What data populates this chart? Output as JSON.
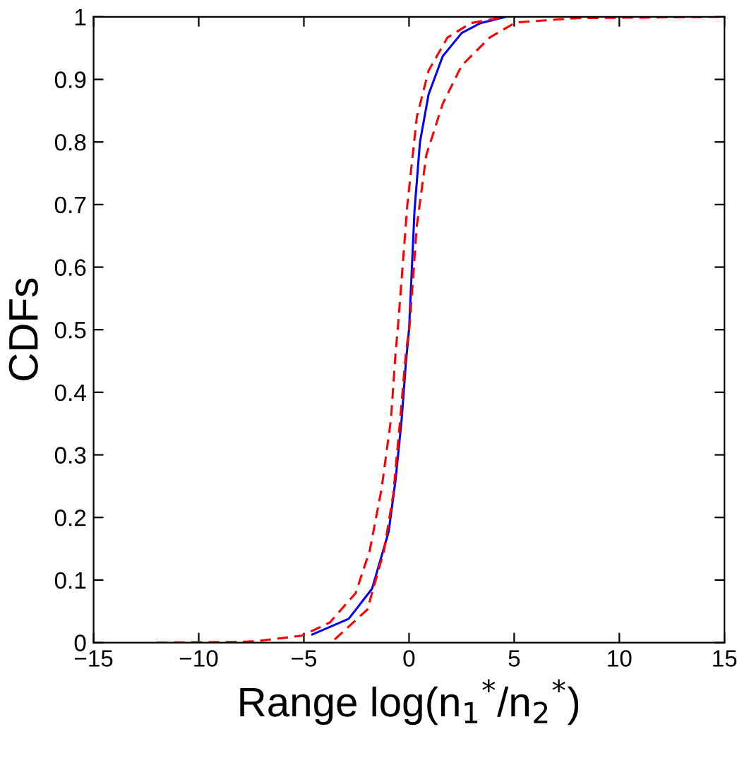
{
  "chart_data": {
    "type": "line",
    "xlabel": "Range log(n$_{1}$$^{*}$/n$_{2}$$^{*}$)",
    "ylabel": "CDFs",
    "xlim": [
      -15,
      15
    ],
    "xticks": [
      -15,
      -10,
      -5,
      0,
      5,
      10,
      15
    ],
    "ylim": [
      0,
      1
    ],
    "yticks": [
      0,
      0.1,
      0.2,
      0.3,
      0.4,
      0.5,
      0.6,
      0.7,
      0.8,
      0.9,
      1
    ],
    "grid": false,
    "legend": false,
    "marker": "none",
    "series": [
      {
        "color": "#0000ff",
        "line_style": "solid",
        "x": [
          -4.6,
          -2.87,
          -1.76,
          -0.97,
          -0.64,
          -0.35,
          -0.15,
          0.0,
          0.26,
          0.52,
          0.93,
          1.6,
          2.5,
          3.4,
          4.6
        ],
        "values": [
          0.013,
          0.038,
          0.086,
          0.177,
          0.26,
          0.357,
          0.447,
          0.5,
          0.69,
          0.8,
          0.876,
          0.937,
          0.974,
          0.99,
          1.0
        ]
      },
      {
        "color": "#ff0000",
        "line_style": "dashed",
        "x": [
          -12,
          -8.5,
          -7.35,
          -5.1,
          -3.77,
          -2.54,
          -1.87,
          -1.31,
          -0.86,
          -0.64,
          -0.52,
          -0.08,
          0.37,
          0.93,
          1.83,
          2.94,
          4.6
        ],
        "values": [
          0.0,
          0.001,
          0.002,
          0.011,
          0.032,
          0.079,
          0.147,
          0.245,
          0.357,
          0.463,
          0.508,
          0.7,
          0.84,
          0.914,
          0.967,
          0.99,
          1.0
        ]
      },
      {
        "color": "#ff0000",
        "line_style": "dashed",
        "x": [
          -3.54,
          -1.98,
          -1.19,
          -0.75,
          -0.42,
          -0.15,
          0.03,
          0.37,
          0.82,
          1.6,
          2.5,
          3.84,
          5.07,
          8,
          15
        ],
        "values": [
          0.005,
          0.053,
          0.147,
          0.237,
          0.357,
          0.463,
          0.508,
          0.666,
          0.779,
          0.861,
          0.922,
          0.967,
          0.991,
          0.998,
          1.0
        ]
      }
    ]
  }
}
